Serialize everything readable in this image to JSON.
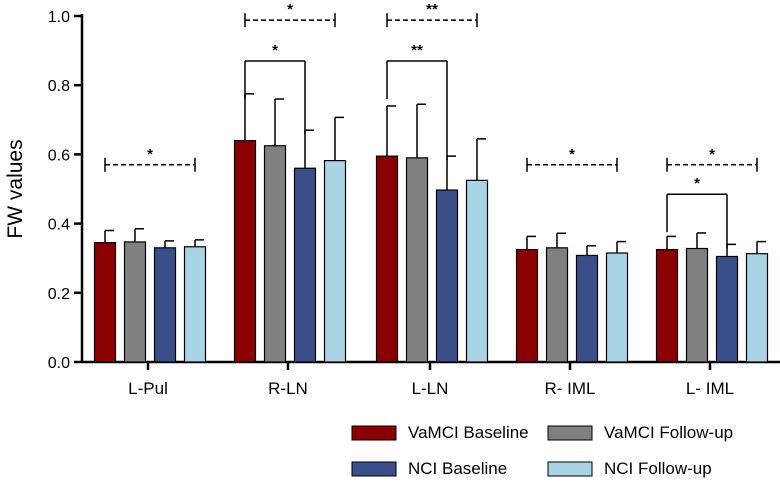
{
  "chart_data": {
    "type": "bar",
    "title": "",
    "xlabel": "",
    "ylabel": "FW values",
    "ylim": [
      0,
      1.0
    ],
    "yticks": [
      "0.0",
      "0.2",
      "0.4",
      "0.6",
      "0.8",
      "1.0"
    ],
    "grid": false,
    "legend_position": "bottom-right",
    "categories": [
      "L-Pul",
      "R-LN",
      "L-LN",
      "R- IML",
      "L- IML"
    ],
    "series": [
      {
        "name": "VaMCI Baseline",
        "color": "#8b0000",
        "values": [
          0.345,
          0.64,
          0.595,
          0.325,
          0.325
        ],
        "errors": [
          0.035,
          0.135,
          0.145,
          0.038,
          0.038
        ]
      },
      {
        "name": "VaMCI Follow-up",
        "color": "#808080",
        "values": [
          0.347,
          0.625,
          0.59,
          0.33,
          0.328
        ],
        "errors": [
          0.038,
          0.135,
          0.155,
          0.042,
          0.045
        ]
      },
      {
        "name": "NCI Baseline",
        "color": "#3a4f8a",
        "values": [
          0.33,
          0.56,
          0.497,
          0.308,
          0.305
        ],
        "errors": [
          0.02,
          0.11,
          0.098,
          0.028,
          0.035
        ]
      },
      {
        "name": "NCI Follow-up",
        "color": "#a8d4e6",
        "values": [
          0.333,
          0.582,
          0.525,
          0.315,
          0.313
        ],
        "errors": [
          0.02,
          0.125,
          0.12,
          0.033,
          0.035
        ]
      }
    ],
    "annotations": [
      {
        "category": 0,
        "from": 0,
        "to": 3,
        "style": "dashed",
        "y": 0.57,
        "label": "*"
      },
      {
        "category": 1,
        "from": 0,
        "to": 3,
        "style": "dashed",
        "y": 0.988,
        "label": "*"
      },
      {
        "category": 1,
        "from": 0,
        "to": 2,
        "style": "solid",
        "y": 0.87,
        "label": "*"
      },
      {
        "category": 2,
        "from": 0,
        "to": 3,
        "style": "dashed",
        "y": 0.988,
        "label": "**"
      },
      {
        "category": 2,
        "from": 0,
        "to": 2,
        "style": "solid",
        "y": 0.87,
        "label": "**"
      },
      {
        "category": 3,
        "from": 0,
        "to": 3,
        "style": "dashed",
        "y": 0.57,
        "label": "*"
      },
      {
        "category": 4,
        "from": 0,
        "to": 3,
        "style": "dashed",
        "y": 0.57,
        "label": "*"
      },
      {
        "category": 4,
        "from": 0,
        "to": 2,
        "style": "solid",
        "y": 0.485,
        "label": "*"
      }
    ]
  }
}
